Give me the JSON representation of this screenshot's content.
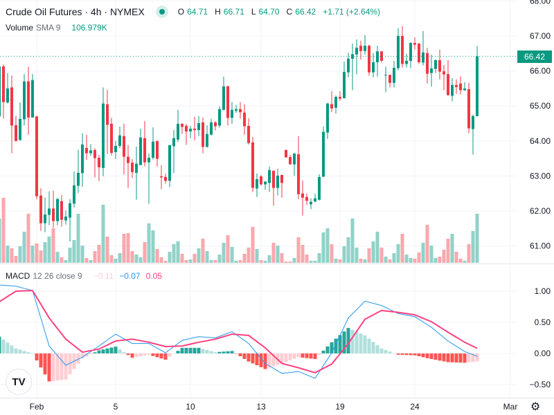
{
  "header": {
    "title": "Crude Oil Futures · 4h · NYMEX",
    "status_color": "#089981",
    "ohlc": [
      {
        "key": "O",
        "value": "64.71"
      },
      {
        "key": "H",
        "value": "66.71"
      },
      {
        "key": "L",
        "value": "64.70"
      },
      {
        "key": "C",
        "value": "66.42"
      }
    ],
    "change": "+1.71 (+2.64%)"
  },
  "volume_legend": {
    "label": "Volume",
    "params": "SMA 9",
    "value": "106.979K"
  },
  "macd_legend": {
    "label": "MACD",
    "params": "12 26 close 9",
    "histogram": "−0.11",
    "macd": "−0.07",
    "signal": "0.05"
  },
  "current_price": "66.42",
  "logo_text": "TV",
  "settings_icon": "gear-icon",
  "colors": {
    "up": "#089981",
    "down": "#f23645",
    "vol_up": "#92d2c8",
    "vol_down": "#f9a8ae",
    "macd": "#2196f3",
    "signal": "#ff4081",
    "hist_up_strong": "#26a69a",
    "hist_up_weak": "#b2dfdb",
    "hist_down_strong": "#ff5252",
    "hist_down_weak": "#ffcdd2"
  },
  "chart_data": {
    "type": "candlestick",
    "price_axis": {
      "ticks": [
        "68.00",
        "67.00",
        "66.00",
        "65.00",
        "64.00",
        "63.00",
        "62.00",
        "61.00"
      ],
      "range": [
        60.6,
        68.0
      ]
    },
    "macd_axis": {
      "ticks": [
        "1.00",
        "0.50",
        "0.00",
        "−0.50"
      ],
      "range": [
        -0.75,
        1.2
      ]
    },
    "x_ticks": [
      "Feb",
      "5",
      "10",
      "13",
      "19",
      "24",
      "Mar"
    ],
    "grid": true,
    "ohlc": [
      [
        64.7,
        66.2,
        64.6,
        66.13
      ],
      [
        66.13,
        66.19,
        64.64,
        65.11
      ],
      [
        65.1,
        65.94,
        65.07,
        65.5
      ],
      [
        65.53,
        65.87,
        63.65,
        64.44
      ],
      [
        64.45,
        64.72,
        63.98,
        64.0
      ],
      [
        64.03,
        65.1,
        64.0,
        64.63
      ],
      [
        64.62,
        65.91,
        64.44,
        65.7
      ],
      [
        65.7,
        66.12,
        64.18,
        64.67
      ],
      [
        64.67,
        65.91,
        64.67,
        65.74
      ],
      [
        64.7,
        64.72,
        62.33,
        62.42
      ],
      [
        62.44,
        62.65,
        61.43,
        61.65
      ],
      [
        61.65,
        62.38,
        61.39,
        61.9
      ],
      [
        61.89,
        62.56,
        61.59,
        62.07
      ],
      [
        62.07,
        62.58,
        61.52,
        61.71
      ],
      [
        61.71,
        62.38,
        61.59,
        62.34
      ],
      [
        62.28,
        62.46,
        61.55,
        61.75
      ],
      [
        61.73,
        62.02,
        61.61,
        61.84
      ],
      [
        61.81,
        62.34,
        61.13,
        62.22
      ],
      [
        62.21,
        63.13,
        62.1,
        62.73
      ],
      [
        62.72,
        63.75,
        62.52,
        63.09
      ],
      [
        63.08,
        64.22,
        62.69,
        63.9
      ],
      [
        63.8,
        64.18,
        63.46,
        63.65
      ],
      [
        63.65,
        63.91,
        63.58,
        63.73
      ],
      [
        63.74,
        63.79,
        62.96,
        63.51
      ],
      [
        63.52,
        63.6,
        62.85,
        63.25
      ],
      [
        63.23,
        65.53,
        62.99,
        65.07
      ],
      [
        65.05,
        65.46,
        63.63,
        64.46
      ],
      [
        64.49,
        64.66,
        63.58,
        63.66
      ],
      [
        63.68,
        64.0,
        63.48,
        63.86
      ],
      [
        63.86,
        64.41,
        63.8,
        64.16
      ],
      [
        64.14,
        64.49,
        63.04,
        63.55
      ],
      [
        63.55,
        63.88,
        62.66,
        63.37
      ],
      [
        63.38,
        63.48,
        62.94,
        63.11
      ],
      [
        63.09,
        63.84,
        62.32,
        63.35
      ],
      [
        63.31,
        64.35,
        63.31,
        64.1
      ],
      [
        64.08,
        64.57,
        63.27,
        63.39
      ],
      [
        63.39,
        63.64,
        62.21,
        63.52
      ],
      [
        63.52,
        64.39,
        63.47,
        63.98
      ],
      [
        64.0,
        64.0,
        63.27,
        63.49
      ],
      [
        62.99,
        63.31,
        62.62,
        62.96
      ],
      [
        62.97,
        63.07,
        62.78,
        62.86
      ],
      [
        62.86,
        63.89,
        62.68,
        63.88
      ],
      [
        63.85,
        64.31,
        63.08,
        64.08
      ],
      [
        64.04,
        64.89,
        63.97,
        64.49
      ],
      [
        64.49,
        64.51,
        64.2,
        64.4
      ],
      [
        64.43,
        64.49,
        63.89,
        64.27
      ],
      [
        64.27,
        64.43,
        64.08,
        64.35
      ],
      [
        64.35,
        64.69,
        64.02,
        64.31
      ],
      [
        64.31,
        64.71,
        64.14,
        64.51
      ],
      [
        64.53,
        64.67,
        63.65,
        63.83
      ],
      [
        63.83,
        64.45,
        63.81,
        64.2
      ],
      [
        64.18,
        64.63,
        64.16,
        64.53
      ],
      [
        64.53,
        64.57,
        64.3,
        64.42
      ],
      [
        64.44,
        64.99,
        64.38,
        64.91
      ],
      [
        64.89,
        65.84,
        64.87,
        65.56
      ],
      [
        65.56,
        65.58,
        64.44,
        64.66
      ],
      [
        64.66,
        65.11,
        64.49,
        64.89
      ],
      [
        64.86,
        65.03,
        64.8,
        64.91
      ],
      [
        64.91,
        65.11,
        64.64,
        64.82
      ],
      [
        64.81,
        65.05,
        64.18,
        64.42
      ],
      [
        64.43,
        64.65,
        63.9,
        63.94
      ],
      [
        63.96,
        64.12,
        62.54,
        62.66
      ],
      [
        62.64,
        63.07,
        62.4,
        62.91
      ],
      [
        62.99,
        63.02,
        62.72,
        62.76
      ],
      [
        62.76,
        62.85,
        62.6,
        62.84
      ],
      [
        62.8,
        63.27,
        62.54,
        63.17
      ],
      [
        63.15,
        63.15,
        62.15,
        62.66
      ],
      [
        62.66,
        63.21,
        62.44,
        63.01
      ],
      [
        63.03,
        63.03,
        62.38,
        62.8
      ],
      [
        63.74,
        63.76,
        63.53,
        63.53
      ],
      [
        63.54,
        63.6,
        63.33,
        63.33
      ],
      [
        63.33,
        63.66,
        63.0,
        63.64
      ],
      [
        63.62,
        64.14,
        62.34,
        62.48
      ],
      [
        62.5,
        62.87,
        61.87,
        62.38
      ],
      [
        62.4,
        62.5,
        62.17,
        62.29
      ],
      [
        62.19,
        62.36,
        62.05,
        62.26
      ],
      [
        62.27,
        62.5,
        62.25,
        62.36
      ],
      [
        62.32,
        63.05,
        62.3,
        62.97
      ],
      [
        62.98,
        64.41,
        62.96,
        64.26
      ],
      [
        64.24,
        65.09,
        64.06,
        65.07
      ],
      [
        65.05,
        65.42,
        64.82,
        64.93
      ],
      [
        64.95,
        65.3,
        64.78,
        65.26
      ],
      [
        65.26,
        65.42,
        65.15,
        65.21
      ],
      [
        65.22,
        66.27,
        65.22,
        65.97
      ],
      [
        65.96,
        66.52,
        65.82,
        66.35
      ],
      [
        66.35,
        66.78,
        65.45,
        66.48
      ],
      [
        66.47,
        66.9,
        65.9,
        66.66
      ],
      [
        66.72,
        66.86,
        66.32,
        66.57
      ],
      [
        66.57,
        67.02,
        66.47,
        66.72
      ],
      [
        66.72,
        66.75,
        65.86,
        65.96
      ],
      [
        65.96,
        66.51,
        65.82,
        66.25
      ],
      [
        66.25,
        66.72,
        65.84,
        66.56
      ],
      [
        66.56,
        66.56,
        66.24,
        66.29
      ],
      [
        65.88,
        66.12,
        65.39,
        65.89
      ],
      [
        65.89,
        65.89,
        65.53,
        65.66
      ],
      [
        65.66,
        66.29,
        65.53,
        66.09
      ],
      [
        66.08,
        67.22,
        66.02,
        67.0
      ],
      [
        67.0,
        67.28,
        66.1,
        66.2
      ],
      [
        66.2,
        66.49,
        66.1,
        66.29
      ],
      [
        66.29,
        66.82,
        66.08,
        66.8
      ],
      [
        66.8,
        66.96,
        66.61,
        66.75
      ],
      [
        66.78,
        66.8,
        66.2,
        66.25
      ],
      [
        66.24,
        67.14,
        66.16,
        66.53
      ],
      [
        66.51,
        66.66,
        65.64,
        65.92
      ],
      [
        65.94,
        66.47,
        65.55,
        66.07
      ],
      [
        66.06,
        66.33,
        65.94,
        66.31
      ],
      [
        66.31,
        66.61,
        65.76,
        65.98
      ],
      [
        65.99,
        66.17,
        65.45,
        65.9
      ],
      [
        65.91,
        66.31,
        65.29,
        65.31
      ],
      [
        65.29,
        65.8,
        65.13,
        65.6
      ],
      [
        65.6,
        65.76,
        65.35,
        65.54
      ],
      [
        65.64,
        65.85,
        65.33,
        65.45
      ],
      [
        65.45,
        65.68,
        65.43,
        65.5
      ],
      [
        65.48,
        65.66,
        64.22,
        64.36
      ],
      [
        64.34,
        64.75,
        63.61,
        64.71
      ],
      [
        64.71,
        66.71,
        64.7,
        66.42
      ]
    ],
    "volume_k": [
      256,
      376,
      100,
      84,
      40,
      96,
      180,
      284,
      100,
      112,
      72,
      120,
      152,
      200,
      64,
      32,
      16,
      88,
      132,
      284,
      100,
      28,
      16,
      68,
      104,
      336,
      152,
      44,
      24,
      56,
      168,
      172,
      68,
      48,
      32,
      120,
      228,
      188,
      80,
      32,
      12,
      64,
      108,
      124,
      52,
      16,
      20,
      52,
      84,
      140,
      68,
      16,
      16,
      48,
      116,
      160,
      92,
      12,
      16,
      52,
      88,
      208,
      80,
      16,
      12,
      44,
      116,
      100,
      56,
      8,
      8,
      28,
      148,
      104,
      48,
      12,
      12,
      56,
      176,
      200,
      108,
      24,
      20,
      96,
      148,
      256,
      88,
      24,
      20,
      84,
      124,
      180,
      88,
      36,
      20,
      56,
      108,
      168,
      48,
      28,
      24,
      60,
      116,
      220,
      100,
      28,
      36,
      76,
      140,
      168,
      64,
      24,
      12,
      108,
      184,
      284
    ],
    "macd_every_4_bars": [
      1.1,
      1.08,
      1.01,
      0.12,
      -0.19,
      -0.06,
      0.12,
      0.31,
      0.16,
      0.16,
      0.01,
      0.21,
      0.27,
      0.25,
      0.35,
      0.16,
      -0.16,
      -0.32,
      -0.29,
      -0.4,
      0.01,
      0.57,
      0.84,
      0.77,
      0.64,
      0.59,
      0.42,
      0.2,
      0.03,
      -0.07
    ],
    "signal_every_4_bars": [
      0.83,
      1.0,
      1.01,
      0.57,
      0.23,
      0.02,
      0.07,
      0.2,
      0.23,
      0.18,
      0.11,
      0.12,
      0.18,
      0.23,
      0.31,
      0.29,
      0.09,
      -0.16,
      -0.23,
      -0.31,
      -0.17,
      0.16,
      0.55,
      0.69,
      0.66,
      0.62,
      0.51,
      0.34,
      0.18,
      0.05
    ]
  }
}
